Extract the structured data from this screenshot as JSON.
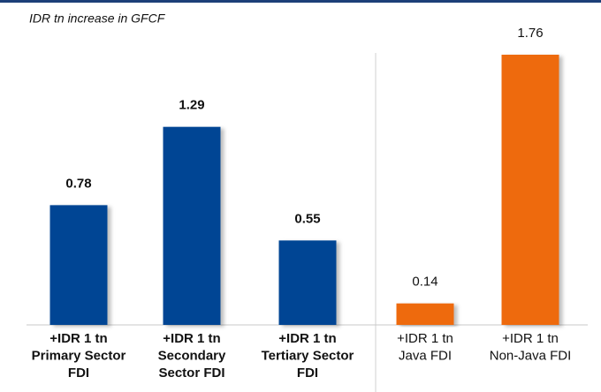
{
  "chart_data": {
    "type": "bar",
    "title": "IDR tn increase in GFCF",
    "categories": [
      [
        "+IDR 1 tn",
        "Primary Sector",
        "FDI"
      ],
      [
        "+IDR 1 tn",
        "Secondary",
        "Sector FDI"
      ],
      [
        "+IDR 1 tn",
        "Tertiary Sector",
        "FDI"
      ],
      [
        "+IDR 1 tn",
        "Java FDI"
      ],
      [
        "+IDR 1 tn",
        "Non-Java FDI"
      ]
    ],
    "values": [
      0.78,
      1.29,
      0.55,
      0.14,
      1.76
    ],
    "colors": [
      "#004494",
      "#004494",
      "#004494",
      "#ee6a0e",
      "#ee6a0e"
    ],
    "ylim": [
      0,
      1.8
    ]
  }
}
